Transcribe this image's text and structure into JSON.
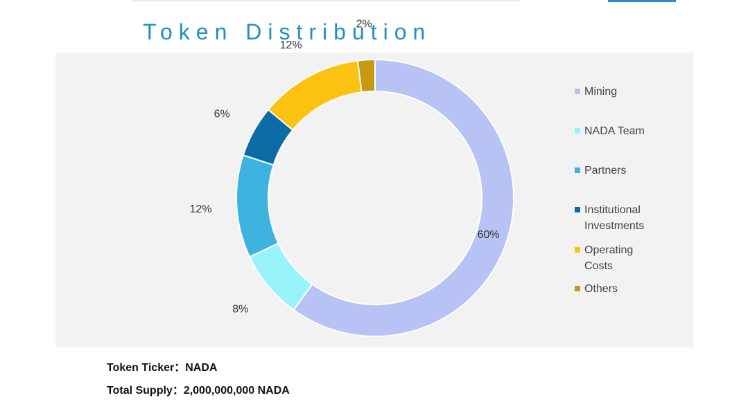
{
  "page": {
    "title": "Token Distribution",
    "ticker_label": "Token Ticker：NADA",
    "supply_label": "Total Supply：2,000,000,000 NADA"
  },
  "chart_data": {
    "type": "pie",
    "variant": "donut",
    "legend_position": "right",
    "series": [
      {
        "name": "Mining",
        "value": 60,
        "label": "60%",
        "color": "#b8c3f5",
        "legend_lines": [
          "Mining"
        ]
      },
      {
        "name": "NADA Team",
        "value": 8,
        "label": "8%",
        "color": "#98f4fa",
        "legend_lines": [
          "NADA Team"
        ]
      },
      {
        "name": "Partners",
        "value": 12,
        "label": "12%",
        "color": "#3eb3e0",
        "legend_lines": [
          "Partners"
        ]
      },
      {
        "name": "Institutional Investments",
        "value": 6,
        "label": "6%",
        "color": "#0d6ba7",
        "legend_lines": [
          "Institutional",
          "Investments"
        ]
      },
      {
        "name": "Operating Costs",
        "value": 12,
        "label": "12%",
        "color": "#fbc211",
        "legend_lines": [
          "Operating",
          "Costs"
        ]
      },
      {
        "name": "Others",
        "value": 2,
        "label": "2%",
        "color": "#c59a12",
        "legend_lines": [
          "Others"
        ]
      }
    ]
  }
}
